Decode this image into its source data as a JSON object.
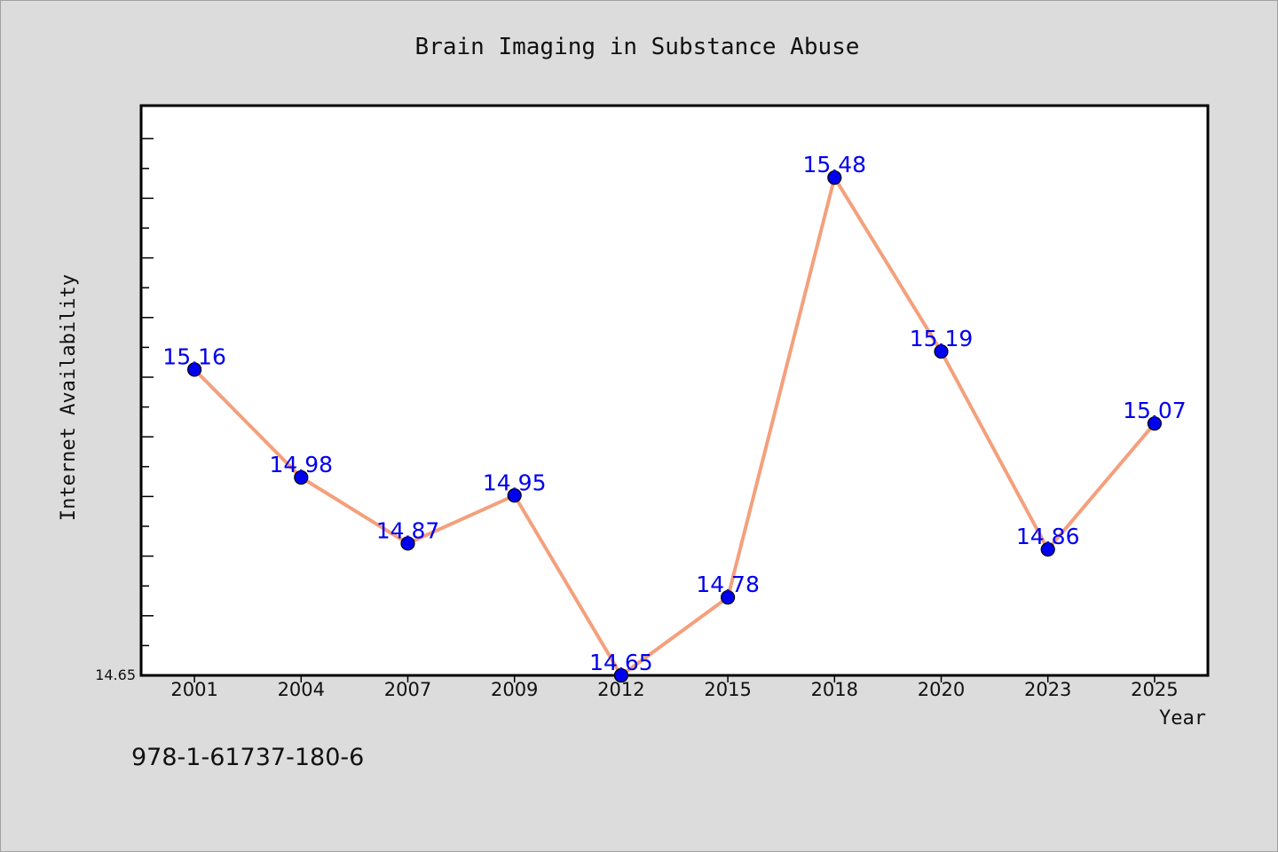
{
  "chart_data": {
    "type": "line",
    "title": "Brain Imaging in Substance Abuse",
    "xlabel": "Year",
    "ylabel": "Internet Availability",
    "categories": [
      "2001",
      "2004",
      "2007",
      "2009",
      "2012",
      "2015",
      "2018",
      "2020",
      "2023",
      "2025"
    ],
    "series": [
      {
        "values": [
          15.16,
          14.98,
          14.87,
          14.95,
          14.65,
          14.78,
          15.48,
          15.19,
          14.86,
          15.07
        ],
        "labels": [
          "15.16",
          "14.98",
          "14.87",
          "14.95",
          "14.65",
          "14.78",
          "15.48",
          "15.19",
          "14.86",
          "15.07"
        ]
      }
    ],
    "y_tick_labels": [
      "14.65"
    ],
    "ylim": [
      14.65,
      15.6
    ],
    "grid": false,
    "line_color": "#f4a07c",
    "marker_color": "#0000ee",
    "label_color": "#0000ee"
  },
  "footer": {
    "isbn": "978-1-61737-180-6"
  }
}
